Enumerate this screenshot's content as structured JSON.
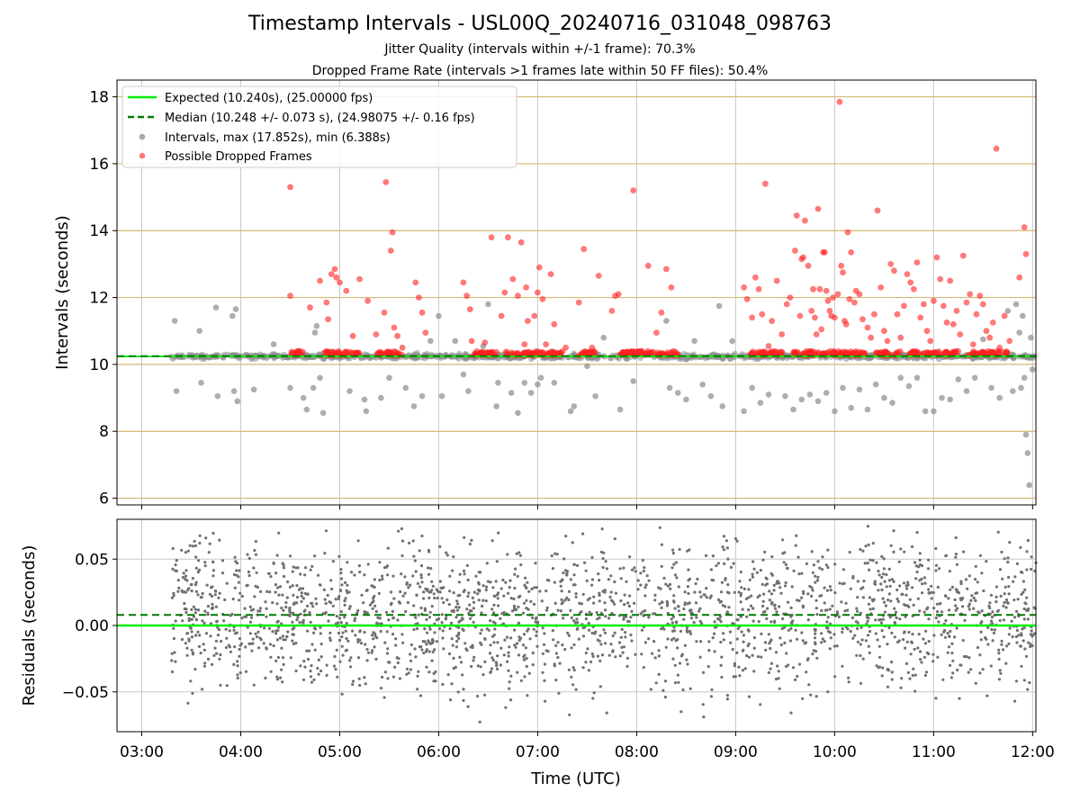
{
  "title": "Timestamp Intervals - USL00Q_20240716_031048_098763",
  "subtitle_jitter": "Jitter Quality (intervals within +/-1 frame): 70.3%",
  "subtitle_dropped": "Dropped Frame Rate (intervals >1 frames late within 50 FF files): 50.4%",
  "chart_data": [
    {
      "type": "scatter",
      "name": "intervals",
      "ylabel": "Intervals (seconds)",
      "xlabel": "",
      "ylim": [
        5.8,
        18.5
      ],
      "yticks": [
        6,
        8,
        10,
        12,
        14,
        16,
        18
      ],
      "grid": true,
      "legend_position": "top-left",
      "legend": [
        "Expected (10.240s), (25.00000 fps)",
        "Median (10.248 +/- 0.073 s), (24.98075 +/- 0.16 fps)",
        "Intervals, max (17.852s), min (6.388s)",
        "Possible Dropped Frames"
      ],
      "expected": 10.24,
      "median": 10.248,
      "max": 17.852,
      "min": 6.388,
      "colors": {
        "expected": "#00ee00",
        "median": "#007a00",
        "intervals": "#8c8c8c",
        "dropped": "#ff2020",
        "hgrid": "#d6b773",
        "vgrid": "#c8c8c8"
      },
      "dropped_outliers": [
        [
          "04:30",
          12.05
        ],
        [
          "04:30",
          15.3
        ],
        [
          "04:35",
          10.4
        ],
        [
          "04:42",
          11.7
        ],
        [
          "04:48",
          12.5
        ],
        [
          "04:52",
          11.85
        ],
        [
          "04:53",
          11.35
        ],
        [
          "04:55",
          12.7
        ],
        [
          "04:57",
          12.85
        ],
        [
          "04:58",
          12.6
        ],
        [
          "05:00",
          12.45
        ],
        [
          "05:04",
          12.2
        ],
        [
          "05:08",
          10.85
        ],
        [
          "05:12",
          12.55
        ],
        [
          "05:17",
          11.9
        ],
        [
          "05:22",
          10.9
        ],
        [
          "05:27",
          11.55
        ],
        [
          "05:28",
          15.45
        ],
        [
          "05:31",
          13.4
        ],
        [
          "05:32",
          13.95
        ],
        [
          "05:33",
          11.1
        ],
        [
          "05:35",
          10.85
        ],
        [
          "05:38",
          10.5
        ],
        [
          "05:46",
          12.45
        ],
        [
          "05:48",
          12.0
        ],
        [
          "05:50",
          11.55
        ],
        [
          "05:52",
          10.95
        ],
        [
          "06:15",
          12.45
        ],
        [
          "06:17",
          12.05
        ],
        [
          "06:19",
          11.65
        ],
        [
          "06:20",
          10.7
        ],
        [
          "06:28",
          10.65
        ],
        [
          "06:32",
          13.8
        ],
        [
          "06:38",
          11.45
        ],
        [
          "06:40",
          12.15
        ],
        [
          "06:42",
          13.8
        ],
        [
          "06:45",
          12.55
        ],
        [
          "06:48",
          12.05
        ],
        [
          "06:50",
          13.65
        ],
        [
          "06:52",
          10.6
        ],
        [
          "06:53",
          12.3
        ],
        [
          "06:54",
          11.3
        ],
        [
          "06:58",
          11.45
        ],
        [
          "07:00",
          12.15
        ],
        [
          "07:01",
          12.9
        ],
        [
          "07:03",
          11.95
        ],
        [
          "07:05",
          10.6
        ],
        [
          "07:08",
          12.7
        ],
        [
          "07:10",
          11.2
        ],
        [
          "07:17",
          10.5
        ],
        [
          "07:25",
          11.85
        ],
        [
          "07:28",
          13.45
        ],
        [
          "07:33",
          10.5
        ],
        [
          "07:37",
          12.65
        ],
        [
          "07:45",
          11.6
        ],
        [
          "07:47",
          12.05
        ],
        [
          "07:49",
          12.1
        ],
        [
          "07:58",
          15.2
        ],
        [
          "08:07",
          12.95
        ],
        [
          "08:12",
          10.95
        ],
        [
          "08:15",
          11.55
        ],
        [
          "08:18",
          12.85
        ],
        [
          "08:21",
          12.3
        ],
        [
          "09:05",
          12.3
        ],
        [
          "09:07",
          11.95
        ],
        [
          "09:10",
          11.4
        ],
        [
          "09:12",
          12.6
        ],
        [
          "09:14",
          12.25
        ],
        [
          "09:16",
          11.5
        ],
        [
          "09:18",
          15.4
        ],
        [
          "09:20",
          10.55
        ],
        [
          "09:22",
          11.3
        ],
        [
          "09:25",
          12.5
        ],
        [
          "09:28",
          10.9
        ],
        [
          "09:31",
          11.8
        ],
        [
          "09:33",
          12.0
        ],
        [
          "09:36",
          13.4
        ],
        [
          "09:37",
          14.45
        ],
        [
          "09:39",
          11.45
        ],
        [
          "09:40",
          13.15
        ],
        [
          "09:41",
          13.2
        ],
        [
          "09:42",
          14.3
        ],
        [
          "09:44",
          12.95
        ],
        [
          "09:46",
          11.6
        ],
        [
          "09:47",
          12.25
        ],
        [
          "09:48",
          11.4
        ],
        [
          "09:49",
          10.9
        ],
        [
          "09:50",
          14.65
        ],
        [
          "09:51",
          12.25
        ],
        [
          "09:52",
          11.05
        ],
        [
          "09:53",
          13.35
        ],
        [
          "09:54",
          13.35
        ],
        [
          "09:55",
          12.2
        ],
        [
          "09:56",
          11.9
        ],
        [
          "09:57",
          11.6
        ],
        [
          "09:58",
          11.45
        ],
        [
          "09:59",
          12.0
        ],
        [
          "10:00",
          11.4
        ],
        [
          "10:02",
          12.1
        ],
        [
          "10:03",
          17.85
        ],
        [
          "10:04",
          12.95
        ],
        [
          "10:05",
          12.75
        ],
        [
          "10:06",
          11.3
        ],
        [
          "10:07",
          11.2
        ],
        [
          "10:08",
          13.95
        ],
        [
          "10:09",
          11.95
        ],
        [
          "10:10",
          13.35
        ],
        [
          "10:12",
          11.85
        ],
        [
          "10:13",
          12.2
        ],
        [
          "10:15",
          12.1
        ],
        [
          "10:17",
          11.35
        ],
        [
          "10:20",
          11.1
        ],
        [
          "10:22",
          10.8
        ],
        [
          "10:24",
          11.5
        ],
        [
          "10:26",
          14.6
        ],
        [
          "10:28",
          12.3
        ],
        [
          "10:30",
          11.0
        ],
        [
          "10:32",
          10.7
        ],
        [
          "10:34",
          13.0
        ],
        [
          "10:36",
          12.8
        ],
        [
          "10:38",
          11.5
        ],
        [
          "10:40",
          10.8
        ],
        [
          "10:42",
          11.75
        ],
        [
          "10:44",
          12.7
        ],
        [
          "10:46",
          12.45
        ],
        [
          "10:48",
          12.25
        ],
        [
          "10:50",
          13.05
        ],
        [
          "10:52",
          11.4
        ],
        [
          "10:54",
          11.8
        ],
        [
          "10:56",
          11.0
        ],
        [
          "10:58",
          10.7
        ],
        [
          "11:00",
          11.9
        ],
        [
          "11:02",
          13.2
        ],
        [
          "11:04",
          12.55
        ],
        [
          "11:06",
          11.75
        ],
        [
          "11:08",
          11.25
        ],
        [
          "11:10",
          12.5
        ],
        [
          "11:12",
          11.2
        ],
        [
          "11:14",
          11.6
        ],
        [
          "11:16",
          10.9
        ],
        [
          "11:18",
          13.25
        ],
        [
          "11:20",
          11.85
        ],
        [
          "11:22",
          12.1
        ],
        [
          "11:24",
          10.6
        ],
        [
          "11:26",
          11.5
        ],
        [
          "11:28",
          12.05
        ],
        [
          "11:30",
          11.8
        ],
        [
          "11:32",
          11.0
        ],
        [
          "11:34",
          10.8
        ],
        [
          "11:36",
          11.25
        ],
        [
          "11:38",
          16.45
        ],
        [
          "11:40",
          10.5
        ],
        [
          "11:43",
          11.45
        ],
        [
          "11:46",
          10.7
        ],
        [
          "11:52",
          12.6
        ],
        [
          "11:55",
          14.1
        ],
        [
          "11:56",
          13.3
        ]
      ],
      "interval_outliers": [
        [
          "03:20",
          11.3
        ],
        [
          "03:21",
          9.2
        ],
        [
          "03:35",
          11.0
        ],
        [
          "03:36",
          9.45
        ],
        [
          "03:45",
          11.7
        ],
        [
          "03:46",
          9.05
        ],
        [
          "03:55",
          11.45
        ],
        [
          "03:56",
          9.2
        ],
        [
          "03:57",
          11.65
        ],
        [
          "03:58",
          8.9
        ],
        [
          "04:08",
          9.25
        ],
        [
          "04:20",
          10.6
        ],
        [
          "04:30",
          9.3
        ],
        [
          "04:45",
          10.95
        ],
        [
          "04:44",
          9.3
        ],
        [
          "04:46",
          11.15
        ],
        [
          "04:38",
          9.0
        ],
        [
          "04:40",
          8.65
        ],
        [
          "04:48",
          9.6
        ],
        [
          "04:50",
          8.55
        ],
        [
          "05:06",
          9.2
        ],
        [
          "05:15",
          8.95
        ],
        [
          "05:16",
          8.6
        ],
        [
          "05:25",
          9.0
        ],
        [
          "05:30",
          9.6
        ],
        [
          "05:40",
          9.3
        ],
        [
          "05:45",
          8.75
        ],
        [
          "05:50",
          9.05
        ],
        [
          "05:55",
          10.7
        ],
        [
          "06:00",
          11.45
        ],
        [
          "06:02",
          9.05
        ],
        [
          "06:10",
          10.7
        ],
        [
          "06:15",
          9.7
        ],
        [
          "06:18",
          9.2
        ],
        [
          "06:27",
          10.55
        ],
        [
          "06:30",
          11.8
        ],
        [
          "06:35",
          8.75
        ],
        [
          "06:36",
          9.45
        ],
        [
          "06:44",
          9.15
        ],
        [
          "06:48",
          8.55
        ],
        [
          "06:52",
          9.45
        ],
        [
          "06:56",
          9.15
        ],
        [
          "07:00",
          9.4
        ],
        [
          "07:02",
          9.6
        ],
        [
          "07:10",
          9.45
        ],
        [
          "07:20",
          8.6
        ],
        [
          "07:22",
          8.75
        ],
        [
          "07:30",
          9.95
        ],
        [
          "07:35",
          9.05
        ],
        [
          "07:40",
          10.8
        ],
        [
          "07:50",
          8.65
        ],
        [
          "07:58",
          9.5
        ],
        [
          "08:18",
          11.3
        ],
        [
          "08:20",
          9.3
        ],
        [
          "08:25",
          9.15
        ],
        [
          "08:30",
          8.95
        ],
        [
          "08:35",
          10.7
        ],
        [
          "08:40",
          9.4
        ],
        [
          "08:45",
          9.05
        ],
        [
          "08:50",
          11.75
        ],
        [
          "08:52",
          8.75
        ],
        [
          "08:58",
          10.7
        ],
        [
          "09:05",
          8.6
        ],
        [
          "09:10",
          9.3
        ],
        [
          "09:15",
          8.85
        ],
        [
          "09:20",
          9.1
        ],
        [
          "09:30",
          9.05
        ],
        [
          "09:35",
          8.65
        ],
        [
          "09:40",
          8.95
        ],
        [
          "09:45",
          9.1
        ],
        [
          "09:50",
          8.9
        ],
        [
          "09:55",
          9.15
        ],
        [
          "10:00",
          8.6
        ],
        [
          "10:05",
          9.3
        ],
        [
          "10:10",
          8.7
        ],
        [
          "10:15",
          9.25
        ],
        [
          "10:20",
          8.65
        ],
        [
          "10:25",
          9.4
        ],
        [
          "10:30",
          9.0
        ],
        [
          "10:35",
          8.85
        ],
        [
          "10:40",
          9.6
        ],
        [
          "10:45",
          9.35
        ],
        [
          "10:50",
          9.6
        ],
        [
          "10:55",
          8.6
        ],
        [
          "11:00",
          8.6
        ],
        [
          "11:05",
          9.0
        ],
        [
          "11:10",
          8.95
        ],
        [
          "11:15",
          9.55
        ],
        [
          "11:20",
          9.2
        ],
        [
          "11:25",
          9.6
        ],
        [
          "11:30",
          10.75
        ],
        [
          "11:35",
          9.3
        ],
        [
          "11:40",
          9.0
        ],
        [
          "11:45",
          11.6
        ],
        [
          "11:48",
          9.2
        ],
        [
          "11:50",
          11.8
        ],
        [
          "11:52",
          10.95
        ],
        [
          "11:53",
          9.3
        ],
        [
          "11:54",
          11.45
        ],
        [
          "11:55",
          9.6
        ],
        [
          "11:56",
          7.9
        ],
        [
          "11:57",
          7.35
        ],
        [
          "11:58",
          6.39
        ],
        [
          "11:59",
          10.8
        ],
        [
          "12:00",
          9.85
        ]
      ]
    },
    {
      "type": "scatter",
      "name": "residuals",
      "ylabel": "Residuals (seconds)",
      "xlabel": "Time (UTC)",
      "ylim": [
        -0.08,
        0.08
      ],
      "yticks": [
        0.05,
        0.0,
        -0.05
      ],
      "ytick_labels": [
        "0.05",
        "0.00",
        "−0.05"
      ],
      "xlim": [
        "02:45",
        "12:02"
      ],
      "xticks": [
        "03:00",
        "04:00",
        "05:00",
        "06:00",
        "07:00",
        "08:00",
        "09:00",
        "10:00",
        "11:00",
        "12:00"
      ],
      "grid": true,
      "zero_line": 0.0,
      "median_offset": 0.008,
      "residual_range": [
        -0.08,
        0.08
      ],
      "data_start": "03:18",
      "colors": {
        "points": "#707070",
        "zero": "#00ee00",
        "median": "#007a00",
        "grid": "#c8c8c8"
      }
    }
  ]
}
